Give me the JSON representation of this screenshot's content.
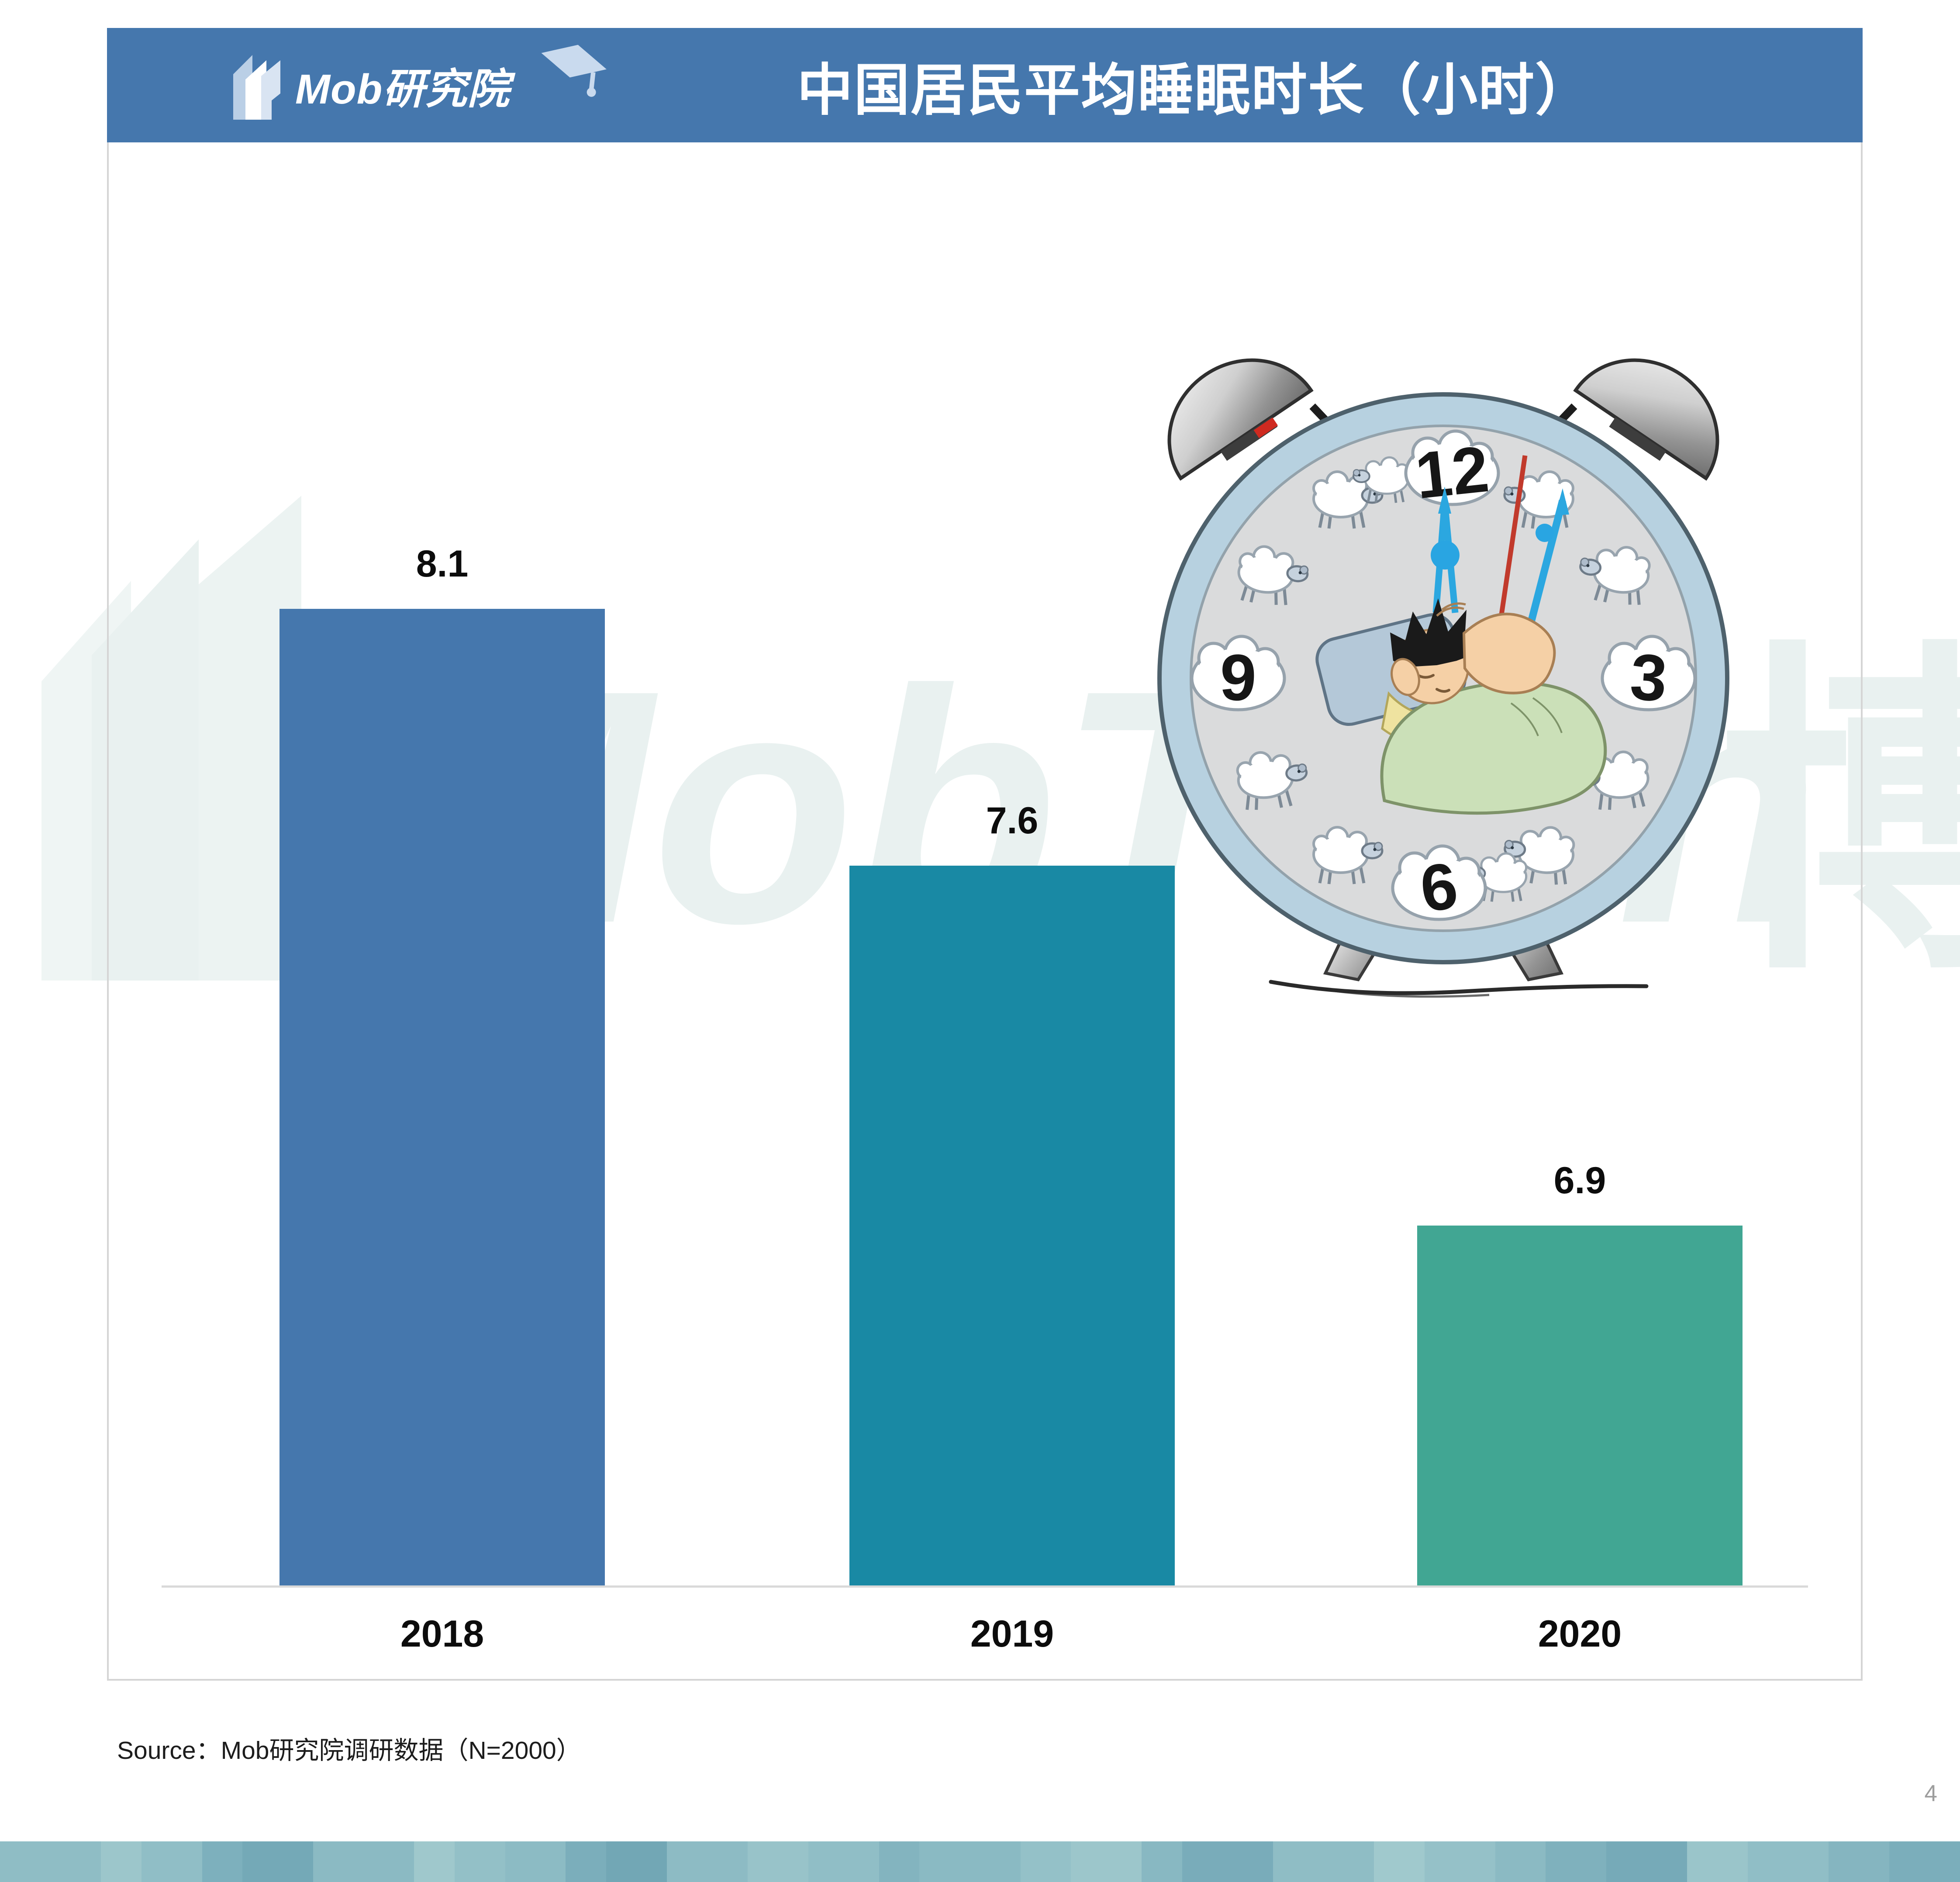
{
  "page": {
    "page_number": "4"
  },
  "header": {
    "logo_text": "Mob研究院",
    "title": "中国居民平均睡眠时长（小时）",
    "bg_color": "#4577AD"
  },
  "watermark": {
    "brand_text": "MobTech",
    "cjk_char": "博",
    "color": "#E9F1F0"
  },
  "footer": {
    "source_text": "Source：Mob研究院调研数据（N=2000）"
  },
  "chart_data": {
    "type": "bar",
    "title": "中国居民平均睡眠时长（小时）",
    "categories": [
      "2018",
      "2019",
      "2020"
    ],
    "values": [
      8.1,
      7.6,
      6.9
    ],
    "value_labels": [
      "8.1",
      "7.6",
      "6.9"
    ],
    "bar_colors": [
      "#4577AD",
      "#1989A4",
      "#41A693"
    ],
    "xlabel": "",
    "ylabel": "",
    "ylim": [
      6.2,
      8.4
    ],
    "grid": false,
    "legend": false
  },
  "illustration": {
    "clock_numbers": [
      "12",
      "3",
      "6",
      "9"
    ]
  },
  "strip": {
    "bands": [
      {
        "c": "#8FBDC5",
        "w": 5
      },
      {
        "c": "#9CC6CB",
        "w": 2
      },
      {
        "c": "#90BEC6",
        "w": 3
      },
      {
        "c": "#7DB0BD",
        "w": 2
      },
      {
        "c": "#74A9B7",
        "w": 3.5
      },
      {
        "c": "#8BBAC3",
        "w": 5
      },
      {
        "c": "#9FC8CC",
        "w": 2
      },
      {
        "c": "#93C0C7",
        "w": 2.5
      },
      {
        "c": "#8CBBC4",
        "w": 3
      },
      {
        "c": "#7BAEBB",
        "w": 2
      },
      {
        "c": "#72A7B5",
        "w": 3
      },
      {
        "c": "#8DBBC4",
        "w": 4
      },
      {
        "c": "#98C3C9",
        "w": 3
      },
      {
        "c": "#90BEC6",
        "w": 3.5
      },
      {
        "c": "#83B4BF",
        "w": 2
      },
      {
        "c": "#8ABAC3",
        "w": 5
      },
      {
        "c": "#94C1C8",
        "w": 2.5
      },
      {
        "c": "#9CC6CB",
        "w": 3.5
      },
      {
        "c": "#88B8C2",
        "w": 2
      },
      {
        "c": "#79ACBA",
        "w": 4.5
      },
      {
        "c": "#8FBDC5",
        "w": 5
      },
      {
        "c": "#A0C9CD",
        "w": 2.5
      },
      {
        "c": "#95C1C8",
        "w": 3.5
      },
      {
        "c": "#8BBAC3",
        "w": 2.5
      },
      {
        "c": "#7FB1BD",
        "w": 3
      },
      {
        "c": "#76AAB8",
        "w": 4
      },
      {
        "c": "#9AC5CA",
        "w": 3
      },
      {
        "c": "#90BEC6",
        "w": 4
      },
      {
        "c": "#85B5C0",
        "w": 3
      },
      {
        "c": "#7BAEBB",
        "w": 3.5
      }
    ]
  }
}
